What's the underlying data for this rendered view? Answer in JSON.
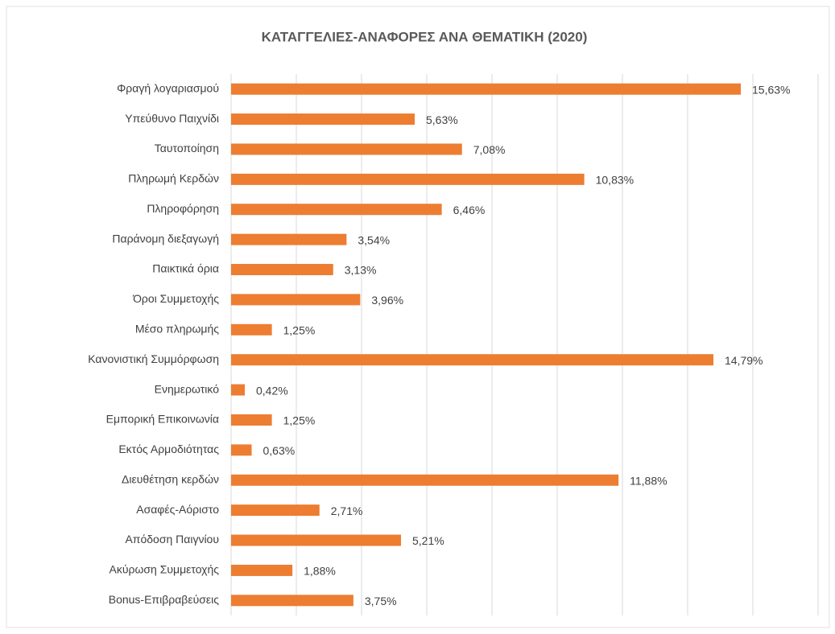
{
  "chart_data": {
    "type": "bar",
    "orientation": "horizontal",
    "title": "ΚΑΤΑΓΓΕΛΙΕΣ-ΑΝΑΦΟΡΕΣ ΑΝΑ ΘΕΜΑΤΙΚΗ (2020)",
    "categories": [
      "Φραγή λογαριασμού",
      "Υπεύθυνο Παιχνίδι",
      "Ταυτοποίηση",
      "Πληρωμή Κερδών",
      "Πληροφόρηση",
      "Παράνομη διεξαγωγή",
      "Παικτικά όρια",
      "Όροι Συμμετοχής",
      "Μέσο πληρωμής",
      "Κανονιστική Συμμόρφωση",
      "Ενημερωτικό",
      "Εμπορική Επικοινωνία",
      "Εκτός Αρμοδιότητας",
      "Διευθέτηση κερδών",
      "Ασαφές-Αόριστο",
      "Απόδοση Παιγνίου",
      "Ακύρωση Συμμετοχής",
      "Bonus-Επιβραβεύσεις"
    ],
    "values": [
      15.63,
      5.63,
      7.08,
      10.83,
      6.46,
      3.54,
      3.13,
      3.96,
      1.25,
      14.79,
      0.42,
      1.25,
      0.63,
      11.88,
      2.71,
      5.21,
      1.88,
      3.75
    ],
    "value_labels": [
      "15,63%",
      "5,63%",
      "7,08%",
      "10,83%",
      "6,46%",
      "3,54%",
      "3,13%",
      "3,96%",
      "1,25%",
      "14,79%",
      "0,42%",
      "1,25%",
      "0,63%",
      "11,88%",
      "2,71%",
      "5,21%",
      "1,88%",
      "3,75%"
    ],
    "color": "#ed7d31",
    "xlim": [
      0,
      18
    ],
    "xticks": [
      0,
      2,
      4,
      6,
      8,
      10,
      12,
      14,
      16,
      18
    ],
    "grid": true
  }
}
